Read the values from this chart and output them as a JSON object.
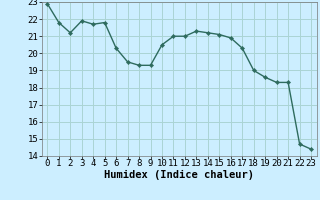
{
  "x": [
    0,
    1,
    2,
    3,
    4,
    5,
    6,
    7,
    8,
    9,
    10,
    11,
    12,
    13,
    14,
    15,
    16,
    17,
    18,
    19,
    20,
    21,
    22,
    23
  ],
  "y": [
    22.9,
    21.8,
    21.2,
    21.9,
    21.7,
    21.8,
    20.3,
    19.5,
    19.3,
    19.3,
    20.5,
    21.0,
    21.0,
    21.3,
    21.2,
    21.1,
    20.9,
    20.3,
    19.0,
    18.6,
    18.3,
    18.3,
    14.7,
    14.4
  ],
  "bg_color": "#cceeff",
  "grid_color": "#aad4d4",
  "line_color": "#2e6b5e",
  "marker_color": "#2e6b5e",
  "xlabel": "Humidex (Indice chaleur)",
  "ylim": [
    14,
    23
  ],
  "xlim": [
    -0.5,
    23.5
  ],
  "yticks": [
    14,
    15,
    16,
    17,
    18,
    19,
    20,
    21,
    22,
    23
  ],
  "xticks": [
    0,
    1,
    2,
    3,
    4,
    5,
    6,
    7,
    8,
    9,
    10,
    11,
    12,
    13,
    14,
    15,
    16,
    17,
    18,
    19,
    20,
    21,
    22,
    23
  ],
  "xlabel_fontsize": 7.5,
  "tick_fontsize": 6.5,
  "line_width": 1.0,
  "marker_size": 2.2
}
